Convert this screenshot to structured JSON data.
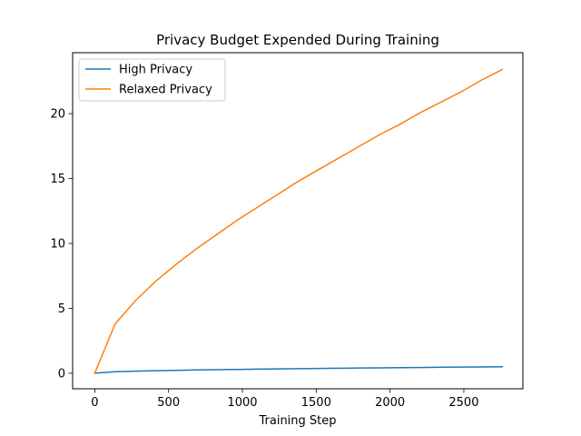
{
  "chart_data": {
    "type": "line",
    "title": "Privacy Budget Expended During Training",
    "xlabel": "Training Step",
    "ylabel": "",
    "xlim": [
      -150,
      2900
    ],
    "ylim": [
      -1.2,
      24.7
    ],
    "xticks": [
      0,
      500,
      1000,
      1500,
      2000,
      2500
    ],
    "yticks": [
      0,
      5,
      10,
      15,
      20
    ],
    "grid": false,
    "legend_position": "top-left",
    "series": [
      {
        "name": "High Privacy",
        "color": "#1f77b4",
        "x": [
          0,
          138,
          276,
          414,
          552,
          690,
          828,
          966,
          1104,
          1242,
          1380,
          1518,
          1656,
          1794,
          1932,
          2070,
          2208,
          2346,
          2484,
          2622,
          2760
        ],
        "y": [
          0.0,
          0.11,
          0.16,
          0.19,
          0.22,
          0.25,
          0.27,
          0.29,
          0.31,
          0.33,
          0.35,
          0.37,
          0.38,
          0.4,
          0.41,
          0.43,
          0.44,
          0.46,
          0.47,
          0.48,
          0.5
        ]
      },
      {
        "name": "Relaxed Privacy",
        "color": "#ff7f0e",
        "x": [
          0,
          138,
          276,
          414,
          552,
          690,
          828,
          966,
          1104,
          1242,
          1380,
          1518,
          1656,
          1794,
          1932,
          2070,
          2208,
          2346,
          2484,
          2622,
          2760
        ],
        "y": [
          0.0,
          3.8,
          5.6,
          7.1,
          8.4,
          9.6,
          10.7,
          11.8,
          12.8,
          13.8,
          14.8,
          15.7,
          16.6,
          17.5,
          18.4,
          19.2,
          20.1,
          20.9,
          21.7,
          22.6,
          23.4
        ]
      }
    ]
  }
}
